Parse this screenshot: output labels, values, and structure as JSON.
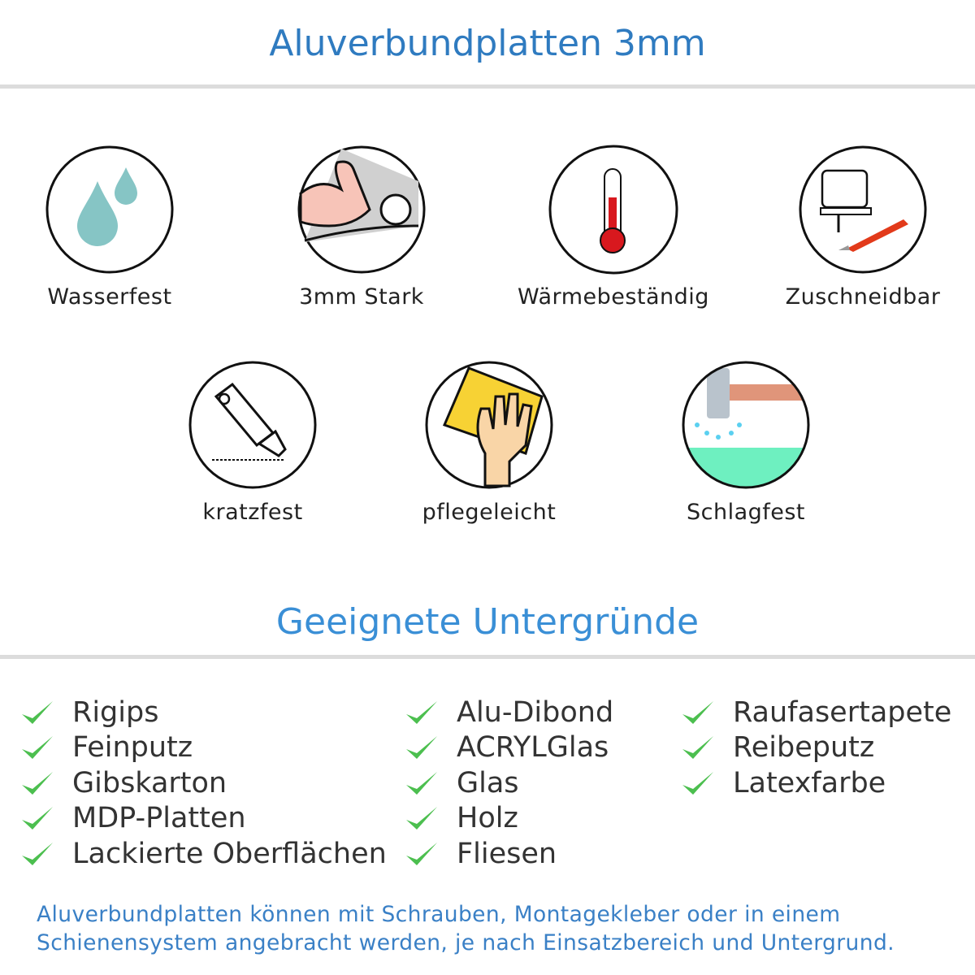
{
  "header": {
    "title": "Aluverbundplatten 3mm"
  },
  "features": [
    {
      "label": "Wasserfest",
      "icon": "water-drops-icon"
    },
    {
      "label": "3mm Stark",
      "icon": "strong-arm-icon"
    },
    {
      "label": "Wärmebeständig",
      "icon": "thermometer-icon"
    },
    {
      "label": "Zuschneidbar",
      "icon": "jigsaw-cutter-icon"
    },
    {
      "label": "kratzfest",
      "icon": "box-cutter-icon"
    },
    {
      "label": "pflegeleicht",
      "icon": "hand-sponge-icon"
    },
    {
      "label": "Schlagfest",
      "icon": "hammer-impact-icon"
    }
  ],
  "surfaces": {
    "title": "Geeignete Untergründe",
    "columns": [
      [
        "Rigips",
        "Feinputz",
        "Gibskarton",
        "MDP-Platten",
        "Lackierte Oberflächen"
      ],
      [
        "Alu-Dibond",
        "ACRYLGlas",
        "Glas",
        "Holz",
        "Fliesen"
      ],
      [
        "Raufasertapete",
        "Reibeputz",
        "Latexfarbe"
      ]
    ]
  },
  "footer": {
    "line1": "Aluverbundplatten können mit Schrauben, Montagekleber oder in einem",
    "line2": "Schienensystem angebracht werden, je nach Einsatzbereich und Untergrund."
  },
  "colors": {
    "title": "#2f7bc0",
    "subtitle": "#3a8fd6",
    "check": "#4cbf4f",
    "divider": "#dcdcdc"
  }
}
